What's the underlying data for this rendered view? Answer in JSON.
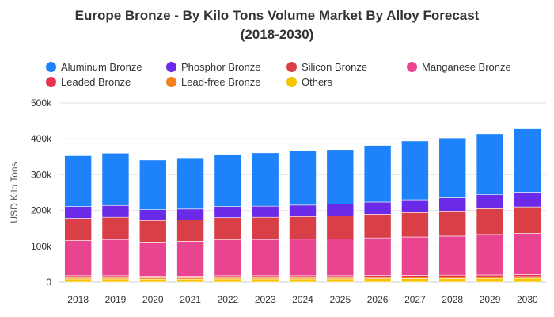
{
  "chart_data": {
    "type": "bar",
    "stacked": true,
    "title_line1": "Europe Bronze - By Kilo Tons Volume Market By Alloy Forecast",
    "title_line2": "(2018-2030)",
    "xlabel": "",
    "ylabel": "USD Kilo Tons",
    "ylim": [
      0,
      500000
    ],
    "yticks": [
      "0",
      "100k",
      "200k",
      "300k",
      "400k",
      "500k"
    ],
    "grid": true,
    "legend_position": "top",
    "categories": [
      "2018",
      "2019",
      "2020",
      "2021",
      "2022",
      "2023",
      "2024",
      "2025",
      "2026",
      "2027",
      "2028",
      "2029",
      "2030"
    ],
    "series": [
      {
        "name": "Others",
        "color": "#f7c400",
        "values": [
          9000,
          9000,
          8500,
          8500,
          9000,
          9000,
          9000,
          9000,
          9500,
          10000,
          10000,
          10500,
          11000
        ]
      },
      {
        "name": "Lead-free Bronze",
        "color": "#f5821f",
        "values": [
          4000,
          4000,
          3500,
          3500,
          4000,
          4000,
          4000,
          4000,
          4000,
          4000,
          4500,
          4500,
          4500
        ]
      },
      {
        "name": "Leaded Bronze",
        "color": "#e8334a",
        "values": [
          5000,
          5000,
          5000,
          5000,
          5000,
          5000,
          5000,
          5000,
          5000,
          5000,
          5000,
          5000,
          5500
        ]
      },
      {
        "name": "Manganese Bronze",
        "color": "#e8448f",
        "values": [
          98000,
          101000,
          95000,
          97000,
          100000,
          101000,
          102000,
          103000,
          105000,
          107000,
          109000,
          113000,
          115000
        ]
      },
      {
        "name": "Silicon Bronze",
        "color": "#d93f47",
        "values": [
          62000,
          62000,
          60000,
          60000,
          62000,
          62000,
          63000,
          64000,
          66000,
          68000,
          70000,
          72000,
          74000
        ]
      },
      {
        "name": "Phosphor Bronze",
        "color": "#6a2ae8",
        "values": [
          33000,
          33000,
          30000,
          30000,
          31000,
          31000,
          32000,
          33000,
          34000,
          36000,
          37000,
          39000,
          41000
        ]
      },
      {
        "name": "Aluminum Bronze",
        "color": "#1e82fa",
        "values": [
          142000,
          146000,
          139000,
          141000,
          146000,
          149000,
          151000,
          152000,
          158000,
          164000,
          167000,
          170000,
          177000
        ]
      }
    ],
    "legend_order": [
      "Aluminum Bronze",
      "Phosphor Bronze",
      "Silicon Bronze",
      "Manganese Bronze",
      "Leaded Bronze",
      "Lead-free Bronze",
      "Others"
    ]
  }
}
